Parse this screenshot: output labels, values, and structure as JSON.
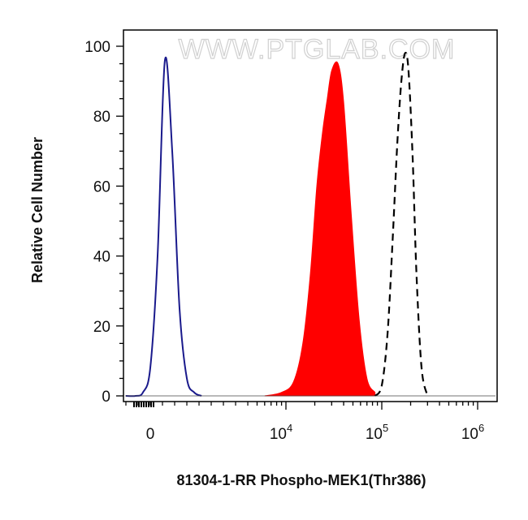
{
  "chart_data": {
    "type": "area",
    "xlabel": "81304-1-RR Phospho-MEK1(Thr386)",
    "ylabel": "Relative Cell Number",
    "watermark": "WWW.PTGLAB.COM",
    "x_scale": "biexponential",
    "ylim": [
      0,
      100
    ],
    "y_ticks": [
      "0",
      "20",
      "40",
      "60",
      "80",
      "100"
    ],
    "x_ticks": [
      {
        "value": 0,
        "base": "0",
        "exp": ""
      },
      {
        "value": 10000,
        "base": "10",
        "exp": "4"
      },
      {
        "value": 100000,
        "base": "10",
        "exp": "5"
      },
      {
        "value": 1000000,
        "base": "10",
        "exp": "6"
      }
    ],
    "colors": {
      "blue": "#1a1a8c",
      "red": "#ff0000",
      "black": "#000000"
    },
    "series": [
      {
        "style": "solid-line",
        "color": "#1a1a8c",
        "x": [
          -1000,
          -600,
          -300,
          0,
          300,
          600,
          900,
          1200,
          1500,
          1800,
          2100
        ],
        "y": [
          0,
          0,
          1,
          8,
          40,
          96,
          70,
          25,
          5,
          1,
          0
        ]
      },
      {
        "style": "filled",
        "color": "#ff0000",
        "x": [
          6000,
          9000,
          12000,
          15000,
          18000,
          21000,
          24000,
          27000,
          30000,
          35000,
          40000,
          48000,
          58000,
          70000,
          85000
        ],
        "y": [
          0,
          1,
          4,
          15,
          35,
          60,
          75,
          85,
          93,
          95,
          84,
          52,
          22,
          5,
          1
        ]
      },
      {
        "style": "dashed-line",
        "color": "#000000",
        "x": [
          85000,
          100000,
          115000,
          130000,
          145000,
          160000,
          175000,
          190000,
          210000,
          230000,
          260000,
          300000
        ],
        "y": [
          0,
          3,
          18,
          45,
          72,
          90,
          98,
          93,
          68,
          35,
          8,
          0
        ]
      }
    ]
  }
}
